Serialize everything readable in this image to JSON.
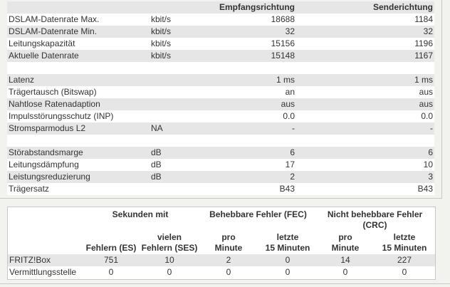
{
  "top_table": {
    "headers": {
      "down": "Empfangsrichtung",
      "up": "Senderichtung"
    },
    "groups": [
      [
        {
          "label": "DSLAM-Datenrate Max.",
          "unit": "kbit/s",
          "down": 18688,
          "up": 1184
        },
        {
          "label": "DSLAM-Datenrate Min.",
          "unit": "kbit/s",
          "down": 32,
          "up": 32
        },
        {
          "label": "Leitungskapazität",
          "unit": "kbit/s",
          "down": 15156,
          "up": 1196
        },
        {
          "label": "Aktuelle Datenrate",
          "unit": "kbit/s",
          "down": 15148,
          "up": 1167
        }
      ],
      [
        {
          "label": "Latenz",
          "down": "1 ms",
          "up": "1 ms"
        },
        {
          "label": "Trägertausch (Bitswap)",
          "down": "an",
          "up": "aus"
        },
        {
          "label": "Nahtlose Ratenadaption",
          "down": "aus",
          "up": "aus"
        },
        {
          "label": "Impulsstörungsschutz (INP)",
          "down": "0.0",
          "up": "0.0"
        },
        {
          "label": "Stromsparmodus L2",
          "unit": "NA",
          "down": "-",
          "up": "-"
        }
      ],
      [
        {
          "label": "Störabstandsmarge",
          "unit": "dB",
          "down": 6,
          "up": 6
        },
        {
          "label": "Leitungsdämpfung",
          "unit": "dB",
          "down": 17,
          "up": 10
        },
        {
          "label": "Leistungsreduzierung",
          "unit": "dB",
          "down": 2,
          "up": 3
        },
        {
          "label": "Trägersatz",
          "down": "B43",
          "up": "B43"
        }
      ]
    ]
  },
  "error_table": {
    "group_headers": [
      "Sekunden mit",
      "Behebbare Fehler (FEC)",
      "Nicht behebbare Fehler (CRC)"
    ],
    "column_headers": [
      [
        "Fehlern (ES)"
      ],
      [
        "vielen",
        "Fehlern (SES)"
      ],
      [
        "pro",
        "Minute"
      ],
      [
        "letzte",
        "15 Minuten"
      ],
      [
        "pro",
        "Minute"
      ],
      [
        "letzte",
        "15 Minuten"
      ]
    ],
    "rows": [
      {
        "label": "FRITZ!Box",
        "values": [
          751,
          10,
          2,
          0,
          14,
          227
        ]
      },
      {
        "label": "Vermittlungsstelle",
        "values": [
          0,
          0,
          0,
          0,
          0,
          0
        ]
      }
    ]
  }
}
